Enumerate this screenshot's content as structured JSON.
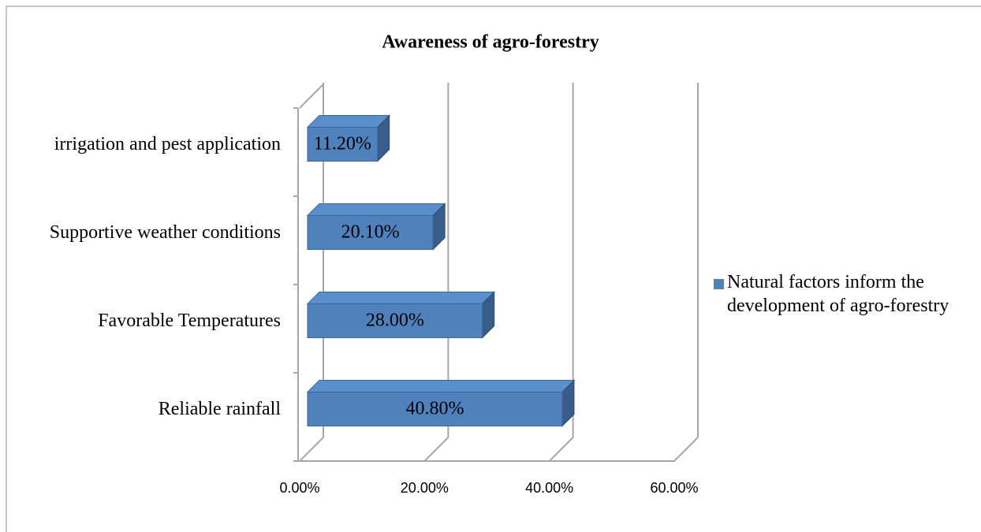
{
  "chart_data": {
    "type": "bar3d-horizontal",
    "title": "Awareness of agro-forestry",
    "categories": [
      "Reliable rainfall",
      "Favorable Temperatures",
      "Supportive weather conditions",
      "irrigation and pest application"
    ],
    "series": [
      {
        "name": "Natural factors inform the development of agro-forestry",
        "color": "#4f81bd",
        "values": [
          40.8,
          28.0,
          20.1,
          11.2
        ],
        "value_labels": [
          "40.80%",
          "28.00%",
          "20.10%",
          "11.20%"
        ]
      }
    ],
    "xlim": [
      0,
      60
    ],
    "xticks": [
      {
        "value": 0,
        "label": "0.00%"
      },
      {
        "value": 20,
        "label": "20.00%"
      },
      {
        "value": 40,
        "label": "40.00%"
      },
      {
        "value": 60,
        "label": "60.00%"
      }
    ],
    "grid": true,
    "legend": "right"
  }
}
